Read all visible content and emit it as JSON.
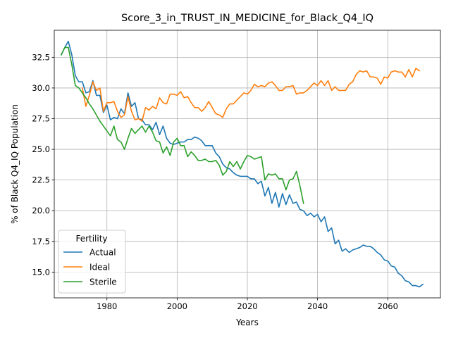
{
  "chart_data": {
    "type": "line",
    "title": "Score_3_in_TRUST_IN_MEDICINE_for_Black_Q4_IQ",
    "xlabel": "Years",
    "ylabel": "% of Black Q4_IQ Population",
    "xlim": [
      1965,
      2075
    ],
    "ylim": [
      12.9,
      34.7
    ],
    "x_ticks": [
      1980,
      2000,
      2020,
      2040,
      2060
    ],
    "y_ticks": [
      15.0,
      17.5,
      20.0,
      22.5,
      25.0,
      27.5,
      30.0,
      32.5
    ],
    "x_tick_labels": [
      "1980",
      "2000",
      "2020",
      "2040",
      "2060"
    ],
    "y_tick_labels": [
      "15.0",
      "17.5",
      "20.0",
      "22.5",
      "25.0",
      "27.5",
      "30.0",
      "32.5"
    ],
    "grid": true,
    "legend": {
      "title": "Fertility",
      "position": "lower-left"
    },
    "series": [
      {
        "name": "Actual",
        "color": "#1f77b4",
        "x_start": 1967,
        "values": [
          32.7,
          33.3,
          33.8,
          32.7,
          31.0,
          30.5,
          30.5,
          29.6,
          29.7,
          30.6,
          29.4,
          29.4,
          28.0,
          28.6,
          27.4,
          27.6,
          27.5,
          28.3,
          27.9,
          29.6,
          28.5,
          28.8,
          27.5,
          27.4,
          27.0,
          27.0,
          26.6,
          27.2,
          26.2,
          26.9,
          25.9,
          25.5,
          25.4,
          25.5,
          25.6,
          25.6,
          25.8,
          25.8,
          26.0,
          25.9,
          25.7,
          25.3,
          25.3,
          25.3,
          24.7,
          24.4,
          23.8,
          23.5,
          23.4,
          23.1,
          22.9,
          22.8,
          22.8,
          22.8,
          22.6,
          22.6,
          22.2,
          22.4,
          21.2,
          21.9,
          20.6,
          21.5,
          20.3,
          21.4,
          20.5,
          21.3,
          20.6,
          20.7,
          20.1,
          20.0,
          19.6,
          19.8,
          19.5,
          19.7,
          19.1,
          19.5,
          18.3,
          18.6,
          17.3,
          17.6,
          16.7,
          16.9,
          16.6,
          16.8,
          16.9,
          17.0,
          17.2,
          17.1,
          17.1,
          16.9,
          16.6,
          16.4,
          16.0,
          15.9,
          15.5,
          15.4,
          14.9,
          14.7,
          14.3,
          14.2,
          13.9,
          13.9,
          13.8,
          14.0
        ]
      },
      {
        "name": "Ideal",
        "color": "#ff7f0e",
        "x_start": 1973,
        "values": [
          30.0,
          28.5,
          29.4,
          30.5,
          29.8,
          30.0,
          28.1,
          28.8,
          28.8,
          28.9,
          28.1,
          27.6,
          27.8,
          29.3,
          28.1,
          27.4,
          27.5,
          27.3,
          28.4,
          28.2,
          28.5,
          28.3,
          29.2,
          28.8,
          28.7,
          29.5,
          29.5,
          29.4,
          29.7,
          29.2,
          29.3,
          28.8,
          28.4,
          28.4,
          28.1,
          28.4,
          28.9,
          28.4,
          27.9,
          27.8,
          27.6,
          28.3,
          28.7,
          28.7,
          29.0,
          29.3,
          29.6,
          29.5,
          29.8,
          30.3,
          30.1,
          30.2,
          30.1,
          30.4,
          30.5,
          30.2,
          29.8,
          29.8,
          30.1,
          30.1,
          30.2,
          29.5,
          29.6,
          29.6,
          29.8,
          30.1,
          30.4,
          30.2,
          30.6,
          30.2,
          30.6,
          29.8,
          30.1,
          29.8,
          29.8,
          29.8,
          30.3,
          30.5,
          31.1,
          31.4,
          31.3,
          31.4,
          30.9,
          30.9,
          30.8,
          30.3,
          30.9,
          30.8,
          31.3,
          31.4,
          31.3,
          31.3,
          30.9,
          31.5,
          30.9,
          31.6,
          31.4
        ]
      },
      {
        "name": "Sterile",
        "color": "#2ca02c",
        "x_start": 1967,
        "values": [
          32.7,
          33.3,
          33.3,
          31.9,
          30.2,
          30.0,
          29.6,
          29.2,
          28.7,
          28.3,
          27.8,
          27.3,
          26.9,
          26.5,
          26.1,
          26.9,
          25.8,
          25.6,
          25.0,
          25.9,
          26.7,
          26.3,
          26.6,
          26.9,
          26.4,
          26.9,
          26.4,
          25.7,
          25.6,
          24.7,
          25.2,
          24.5,
          25.6,
          25.9,
          25.3,
          25.3,
          24.4,
          24.8,
          24.5,
          24.1,
          24.1,
          24.2,
          24.0,
          24.0,
          24.1,
          23.7,
          22.9,
          23.2,
          24.0,
          23.6,
          24.0,
          23.4,
          24.0,
          24.5,
          24.4,
          24.2,
          24.3,
          24.4,
          22.5,
          23.0,
          22.9,
          23.0,
          22.6,
          22.6,
          21.7,
          22.5,
          22.6,
          23.2,
          22.0,
          20.6
        ]
      }
    ]
  }
}
